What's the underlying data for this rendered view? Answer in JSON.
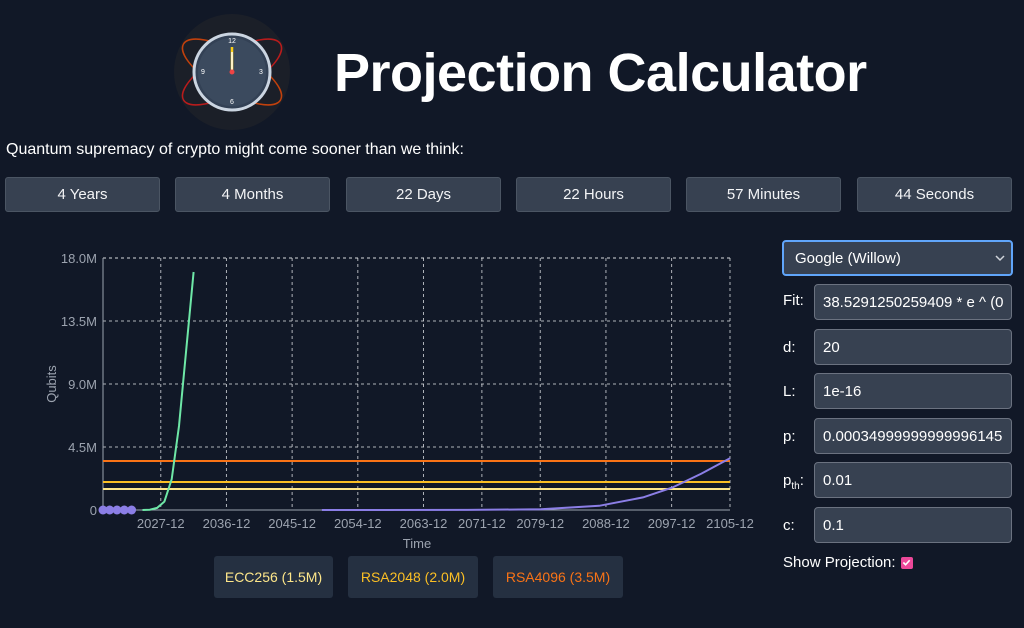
{
  "header": {
    "title": "Projection Calculator",
    "logo_icon": "clock-icon",
    "clock_numerals": [
      "12",
      "3",
      "6",
      "9"
    ]
  },
  "subtitle": "Quantum supremacy of crypto might come sooner than we think:",
  "countdown": [
    {
      "label": "4 Years"
    },
    {
      "label": "4 Months"
    },
    {
      "label": "22 Days"
    },
    {
      "label": "22 Hours"
    },
    {
      "label": "57 Minutes"
    },
    {
      "label": "44 Seconds"
    }
  ],
  "chart_data": {
    "type": "line",
    "title": "",
    "xlabel": "Time",
    "ylabel": "Qubits",
    "x_ticks": [
      "2027-12",
      "2036-12",
      "2045-12",
      "2054-12",
      "2063-12",
      "2071-12",
      "2079-12",
      "2088-12",
      "2097-12",
      "2105-12"
    ],
    "y_ticks": [
      "0",
      "4.5M",
      "9.0M",
      "13.5M",
      "18.0M"
    ],
    "ylim": [
      0,
      18000000
    ],
    "xlim": [
      "2020-01",
      "2105-12"
    ],
    "grid": true,
    "series": [
      {
        "color": "#6ee7a7",
        "points": [
          [
            "2025-06",
            0
          ],
          [
            "2026-06",
            20000
          ],
          [
            "2027-06",
            150000
          ],
          [
            "2028-06",
            600000
          ],
          [
            "2029-06",
            2200000
          ],
          [
            "2030-06",
            6000000
          ],
          [
            "2031-06",
            11500000
          ],
          [
            "2032-06",
            17000000
          ]
        ]
      },
      {
        "color": "#8b7ee6",
        "points": [
          [
            "2050-01",
            0
          ],
          [
            "2070-01",
            5000
          ],
          [
            "2080-01",
            50000
          ],
          [
            "2088-01",
            300000
          ],
          [
            "2094-01",
            900000
          ],
          [
            "2098-01",
            1600000
          ],
          [
            "2102-01",
            2600000
          ],
          [
            "2105-12",
            3700000
          ]
        ]
      }
    ],
    "data_markers": {
      "color": "#8b7ee6",
      "dates": [
        "2020-01",
        "2020-12",
        "2021-12",
        "2022-12",
        "2023-12"
      ],
      "value": 0
    },
    "thresholds": [
      {
        "label": "ECC256 (1.5M)",
        "value": 1500000,
        "color": "#fde68a"
      },
      {
        "label": "RSA2048 (2.0M)",
        "value": 2000000,
        "color": "#fbbf24"
      },
      {
        "label": "RSA4096 (3.5M)",
        "value": 3500000,
        "color": "#f97316"
      }
    ]
  },
  "panel": {
    "select_value": "Google (Willow)",
    "fields": [
      {
        "label": "Fit:",
        "value": "38.5291250259409 * e ^ (0"
      },
      {
        "label": "d:",
        "value": "20"
      },
      {
        "label": "L:",
        "value": "1e-16"
      },
      {
        "label": "p:",
        "value": "0.00034999999999996145"
      },
      {
        "label_main": "p",
        "label_sub": "th",
        "label_tail": ":",
        "value": "0.01"
      },
      {
        "label": "c:",
        "value": "0.1"
      }
    ],
    "show_projection_label": "Show Projection:",
    "show_projection": true
  }
}
